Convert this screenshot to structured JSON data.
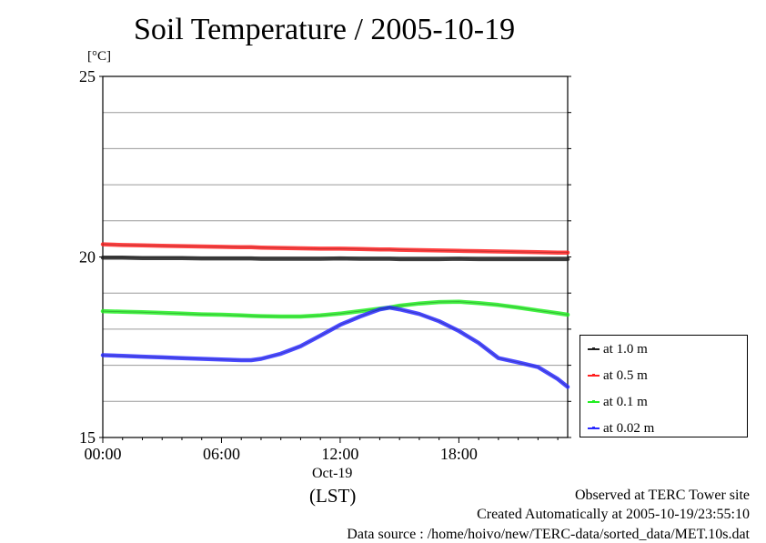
{
  "title": "Soil Temperature / 2005-10-19",
  "unit_label": "[°C]",
  "footer": {
    "line1": "Observed at TERC Tower site",
    "line2": "Created Automatically at 2005-10-19/23:55:10",
    "line3": "Data source : /home/hoivo/new/TERC-data/sorted_data/MET.10s.dat"
  },
  "chart_data": {
    "type": "line",
    "title": "Soil Temperature / 2005-10-19",
    "xlabel": "(LST)",
    "ylabel": "[°C]",
    "x_ticks": [
      "00:00",
      "06:00",
      "12:00",
      "18:00"
    ],
    "x_date_label": "Oct-19",
    "xlim_hours": [
      0,
      23.5
    ],
    "ylim": [
      15,
      25
    ],
    "y_ticks": [
      15,
      20,
      25
    ],
    "grid": true,
    "legend_position": "right",
    "x_hours": [
      0,
      1,
      2,
      3,
      4,
      5,
      6,
      7,
      7.5,
      8,
      9,
      10,
      11,
      12,
      13,
      14,
      14.5,
      15,
      16,
      17,
      18,
      19,
      20,
      21,
      22,
      23,
      23.5
    ],
    "series": [
      {
        "name": "at 1.0 m",
        "color": "#202020",
        "values": [
          19.98,
          19.98,
          19.97,
          19.97,
          19.97,
          19.96,
          19.96,
          19.96,
          19.96,
          19.95,
          19.95,
          19.95,
          19.95,
          19.96,
          19.95,
          19.95,
          19.95,
          19.94,
          19.94,
          19.94,
          19.95,
          19.94,
          19.94,
          19.94,
          19.94,
          19.94,
          19.94
        ]
      },
      {
        "name": "at 0.5 m",
        "color": "#ff2020",
        "values": [
          20.35,
          20.33,
          20.32,
          20.31,
          20.3,
          20.29,
          20.28,
          20.27,
          20.27,
          20.26,
          20.25,
          20.24,
          20.23,
          20.23,
          20.22,
          20.21,
          20.21,
          20.2,
          20.19,
          20.18,
          20.17,
          20.16,
          20.15,
          20.14,
          20.13,
          20.12,
          20.12
        ]
      },
      {
        "name": "at 0.1 m",
        "color": "#22ee22",
        "values": [
          18.5,
          18.48,
          18.47,
          18.45,
          18.43,
          18.41,
          18.4,
          18.38,
          18.37,
          18.36,
          18.35,
          18.35,
          18.38,
          18.43,
          18.5,
          18.57,
          18.6,
          18.65,
          18.71,
          18.75,
          18.76,
          18.72,
          18.67,
          18.6,
          18.52,
          18.44,
          18.4
        ]
      },
      {
        "name": "at 0.02 m",
        "color": "#2a2aff",
        "values": [
          17.28,
          17.26,
          17.24,
          17.22,
          17.2,
          17.18,
          17.16,
          17.14,
          17.14,
          17.18,
          17.32,
          17.53,
          17.82,
          18.12,
          18.35,
          18.55,
          18.6,
          18.55,
          18.42,
          18.22,
          17.95,
          17.62,
          17.2,
          17.08,
          16.95,
          16.62,
          16.4
        ]
      }
    ]
  }
}
